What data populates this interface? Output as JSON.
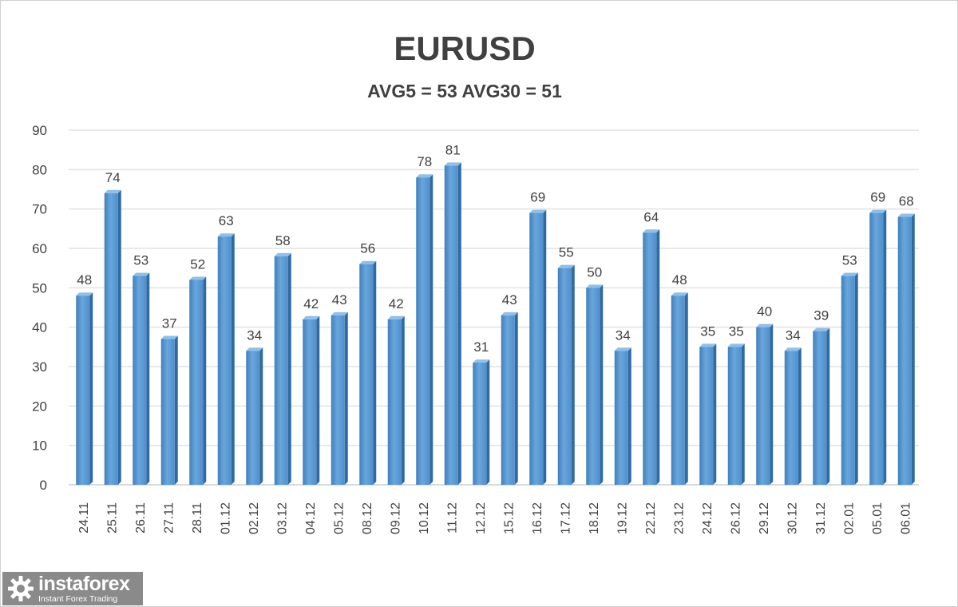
{
  "chart_data": {
    "type": "bar",
    "title": "EURUSD",
    "subtitle": "AVG5 = 53 AVG30 = 51",
    "categories": [
      "24.11",
      "25.11",
      "26.11",
      "27.11",
      "28.11",
      "01.12",
      "02.12",
      "03.12",
      "04.12",
      "05.12",
      "08.12",
      "09.12",
      "10.12",
      "11.12",
      "12.12",
      "15.12",
      "16.12",
      "17.12",
      "18.12",
      "19.12",
      "22.12",
      "23.12",
      "24.12",
      "26.12",
      "29.12",
      "30.12",
      "31.12",
      "02.01",
      "05.01",
      "06.01"
    ],
    "values": [
      48,
      74,
      53,
      37,
      52,
      63,
      34,
      58,
      42,
      43,
      56,
      42,
      78,
      81,
      31,
      43,
      69,
      55,
      50,
      34,
      64,
      48,
      35,
      35,
      40,
      34,
      39,
      53,
      69,
      68
    ],
    "ylim": [
      0,
      90
    ],
    "yticks": [
      0,
      10,
      20,
      30,
      40,
      50,
      60,
      70,
      80,
      90
    ],
    "grid": true,
    "data_labels": true,
    "bar_color": "#5b9bd5",
    "xlabel": "",
    "ylabel": ""
  },
  "watermark": {
    "name": "instaforex",
    "tagline": "Instant Forex Trading",
    "icon": "gear-icon"
  }
}
